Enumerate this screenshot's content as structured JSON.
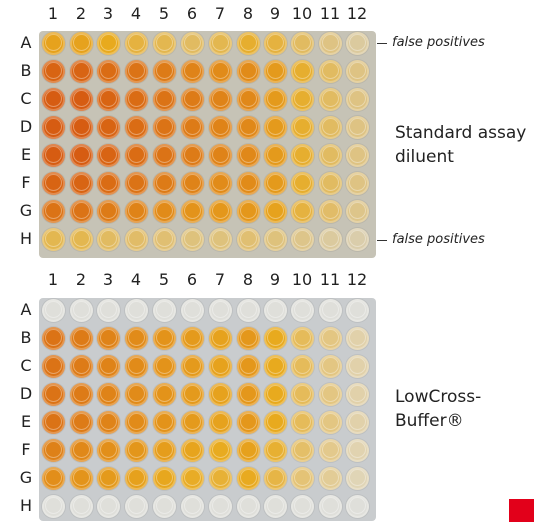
{
  "columns": [
    "1",
    "2",
    "3",
    "4",
    "5",
    "6",
    "7",
    "8",
    "9",
    "10",
    "11",
    "12"
  ],
  "rows": [
    "A",
    "B",
    "C",
    "D",
    "E",
    "F",
    "G",
    "H"
  ],
  "top_plate": {
    "label_line1": "Standard assay",
    "label_line2": "diluent",
    "annotation_row_a": "false positives",
    "annotation_row_h": "false positives"
  },
  "bottom_plate": {
    "label_line1": "LowCross-",
    "label_line2": "Buffer®"
  },
  "colors": {
    "brand_red": "#e2001a"
  }
}
